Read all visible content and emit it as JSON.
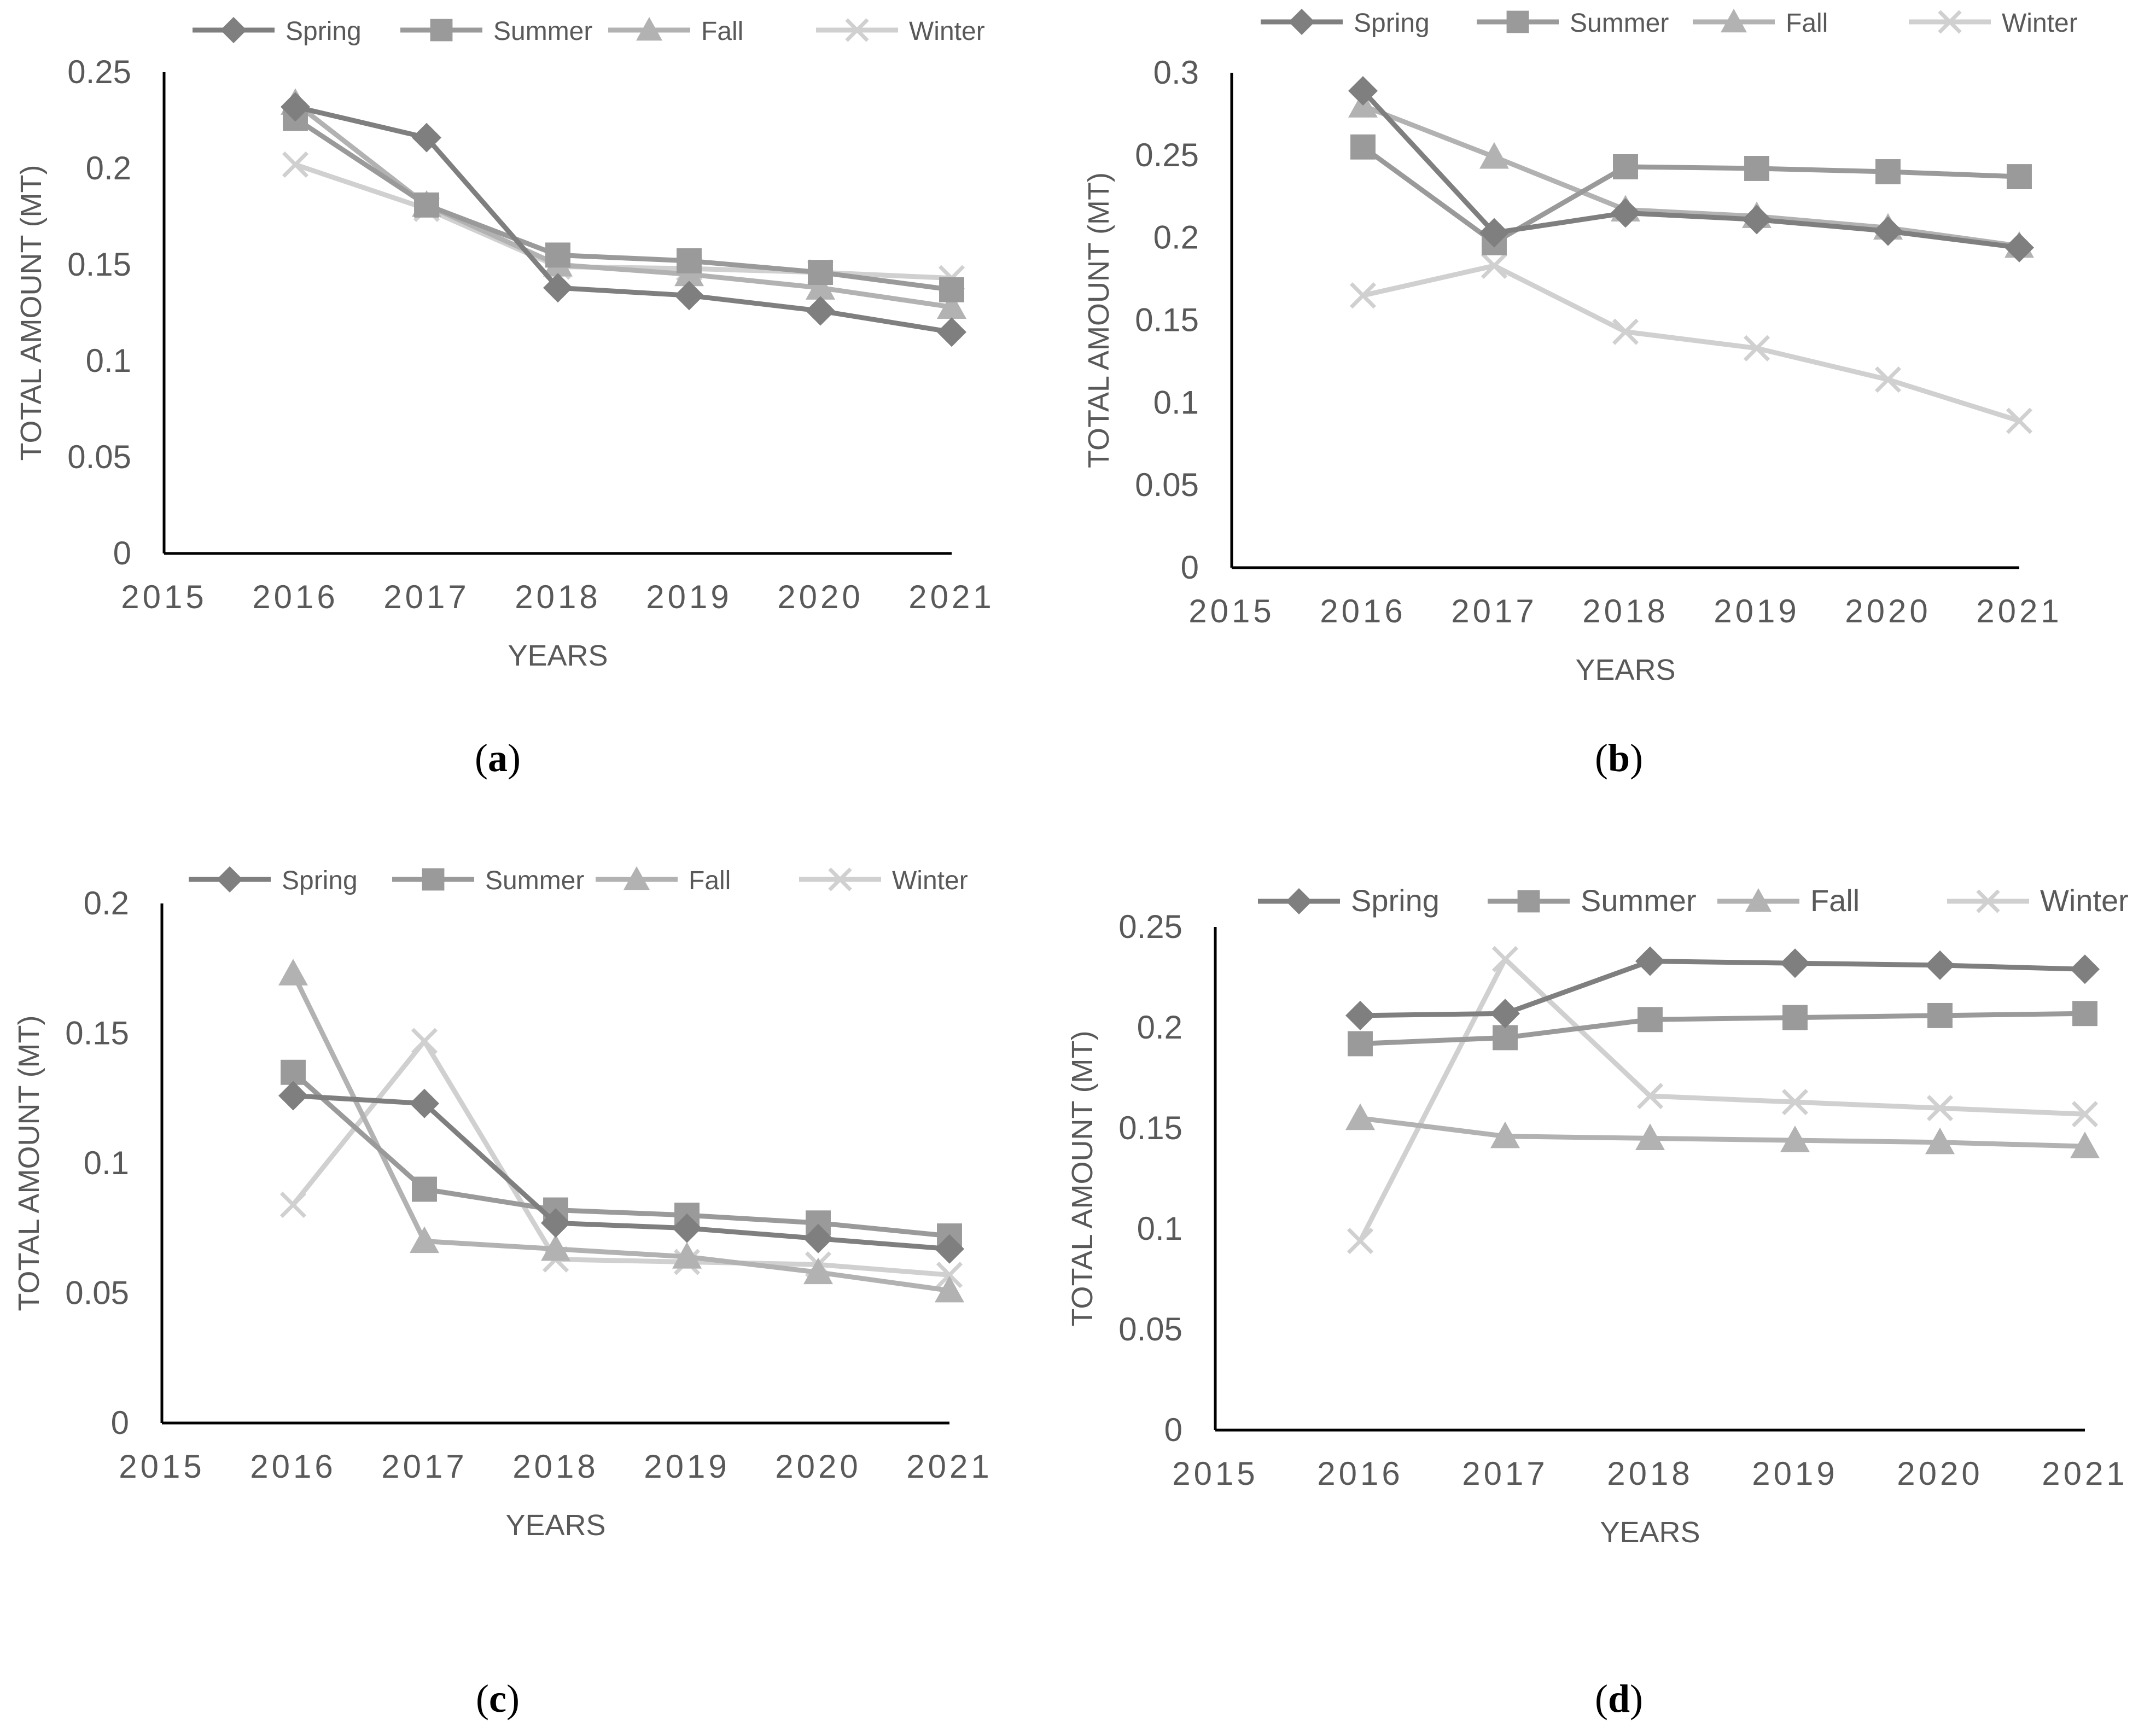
{
  "legend_labels": [
    "Spring",
    "Summer",
    "Fall",
    "Winter"
  ],
  "series_colors": {
    "Spring": "#7f7f7f",
    "Summer": "#9a9a9a",
    "Fall": "#b2b2b2",
    "Winter": "#d0d0d0"
  },
  "series_markers": {
    "Spring": "diamond",
    "Summer": "square",
    "Fall": "triangle",
    "Winter": "x"
  },
  "chart_data": [
    {
      "id": "a",
      "caption_letter": "a",
      "type": "line",
      "title": "",
      "xlabel": "YEARS",
      "ylabel": "TOTAL AMOUNT (MT)",
      "xlim": [
        2015,
        2021
      ],
      "ylim": [
        0,
        0.25
      ],
      "x_ticks": [
        "2015",
        "2016",
        "2017",
        "2018",
        "2019",
        "2020",
        "2021"
      ],
      "y_ticks": [
        "0",
        "0.05",
        "0.1",
        "0.15",
        "0.2",
        "0.25"
      ],
      "x": [
        2016,
        2017,
        2018,
        2019,
        2020,
        2021
      ],
      "series": [
        {
          "name": "Spring",
          "values": [
            0.232,
            0.216,
            0.138,
            0.134,
            0.126,
            0.115
          ]
        },
        {
          "name": "Summer",
          "values": [
            0.226,
            0.181,
            0.155,
            0.152,
            0.146,
            0.137
          ]
        },
        {
          "name": "Fall",
          "values": [
            0.234,
            0.181,
            0.15,
            0.145,
            0.138,
            0.128
          ]
        },
        {
          "name": "Winter",
          "values": [
            0.202,
            0.179,
            0.149,
            0.148,
            0.146,
            0.143
          ]
        }
      ]
    },
    {
      "id": "b",
      "caption_letter": "b",
      "type": "line",
      "title": "",
      "xlabel": "YEARS",
      "ylabel": "TOTAL AMOUNT (MT)",
      "xlim": [
        2015,
        2021
      ],
      "ylim": [
        0,
        0.3
      ],
      "x_ticks": [
        "2015",
        "2016",
        "2017",
        "2018",
        "2019",
        "2020",
        "2021"
      ],
      "y_ticks": [
        "0",
        "0.05",
        "0.1",
        "0.15",
        "0.2",
        "0.25",
        "0.3"
      ],
      "x": [
        2016,
        2017,
        2018,
        2019,
        2020,
        2021
      ],
      "series": [
        {
          "name": "Spring",
          "values": [
            0.289,
            0.203,
            0.215,
            0.211,
            0.204,
            0.194
          ]
        },
        {
          "name": "Summer",
          "values": [
            0.255,
            0.197,
            0.243,
            0.242,
            0.24,
            0.237
          ]
        },
        {
          "name": "Fall",
          "values": [
            0.28,
            0.249,
            0.217,
            0.213,
            0.206,
            0.195
          ]
        },
        {
          "name": "Winter",
          "values": [
            0.165,
            0.183,
            0.143,
            0.133,
            0.114,
            0.089
          ]
        }
      ]
    },
    {
      "id": "c",
      "caption_letter": "c",
      "type": "line",
      "title": "",
      "xlabel": "YEARS",
      "ylabel": "TOTAL AMOUNT (MT)",
      "xlim": [
        2015,
        2021
      ],
      "ylim": [
        0,
        0.2
      ],
      "x_ticks": [
        "2015",
        "2016",
        "2017",
        "2018",
        "2019",
        "2020",
        "2021"
      ],
      "y_ticks": [
        "0",
        "0.05",
        "0.1",
        "0.15",
        "0.2"
      ],
      "x": [
        2016,
        2017,
        2018,
        2019,
        2020,
        2021
      ],
      "series": [
        {
          "name": "Spring",
          "values": [
            0.126,
            0.123,
            0.077,
            0.075,
            0.071,
            0.067
          ]
        },
        {
          "name": "Summer",
          "values": [
            0.135,
            0.09,
            0.082,
            0.08,
            0.077,
            0.072
          ]
        },
        {
          "name": "Fall",
          "values": [
            0.173,
            0.07,
            0.067,
            0.064,
            0.058,
            0.051
          ]
        },
        {
          "name": "Winter",
          "values": [
            0.084,
            0.147,
            0.063,
            0.062,
            0.061,
            0.057
          ]
        }
      ]
    },
    {
      "id": "d",
      "caption_letter": "d",
      "type": "line",
      "title": "",
      "xlabel": "YEARS",
      "ylabel": "TOTAL AMOUNT (MT)",
      "xlim": [
        2015,
        2021
      ],
      "ylim": [
        0,
        0.25
      ],
      "x_ticks": [
        "2015",
        "2016",
        "2017",
        "2018",
        "2019",
        "2020",
        "2021"
      ],
      "y_ticks": [
        "0",
        "0.05",
        "0.1",
        "0.15",
        "0.2",
        "0.25"
      ],
      "x": [
        2016,
        2017,
        2018,
        2019,
        2020,
        2021
      ],
      "series": [
        {
          "name": "Spring",
          "values": [
            0.206,
            0.207,
            0.233,
            0.232,
            0.231,
            0.229
          ]
        },
        {
          "name": "Summer",
          "values": [
            0.192,
            0.195,
            0.204,
            0.205,
            0.206,
            0.207
          ]
        },
        {
          "name": "Fall",
          "values": [
            0.155,
            0.146,
            0.145,
            0.144,
            0.143,
            0.141
          ]
        },
        {
          "name": "Winter",
          "values": [
            0.094,
            0.234,
            0.166,
            0.163,
            0.16,
            0.157
          ]
        }
      ]
    }
  ]
}
